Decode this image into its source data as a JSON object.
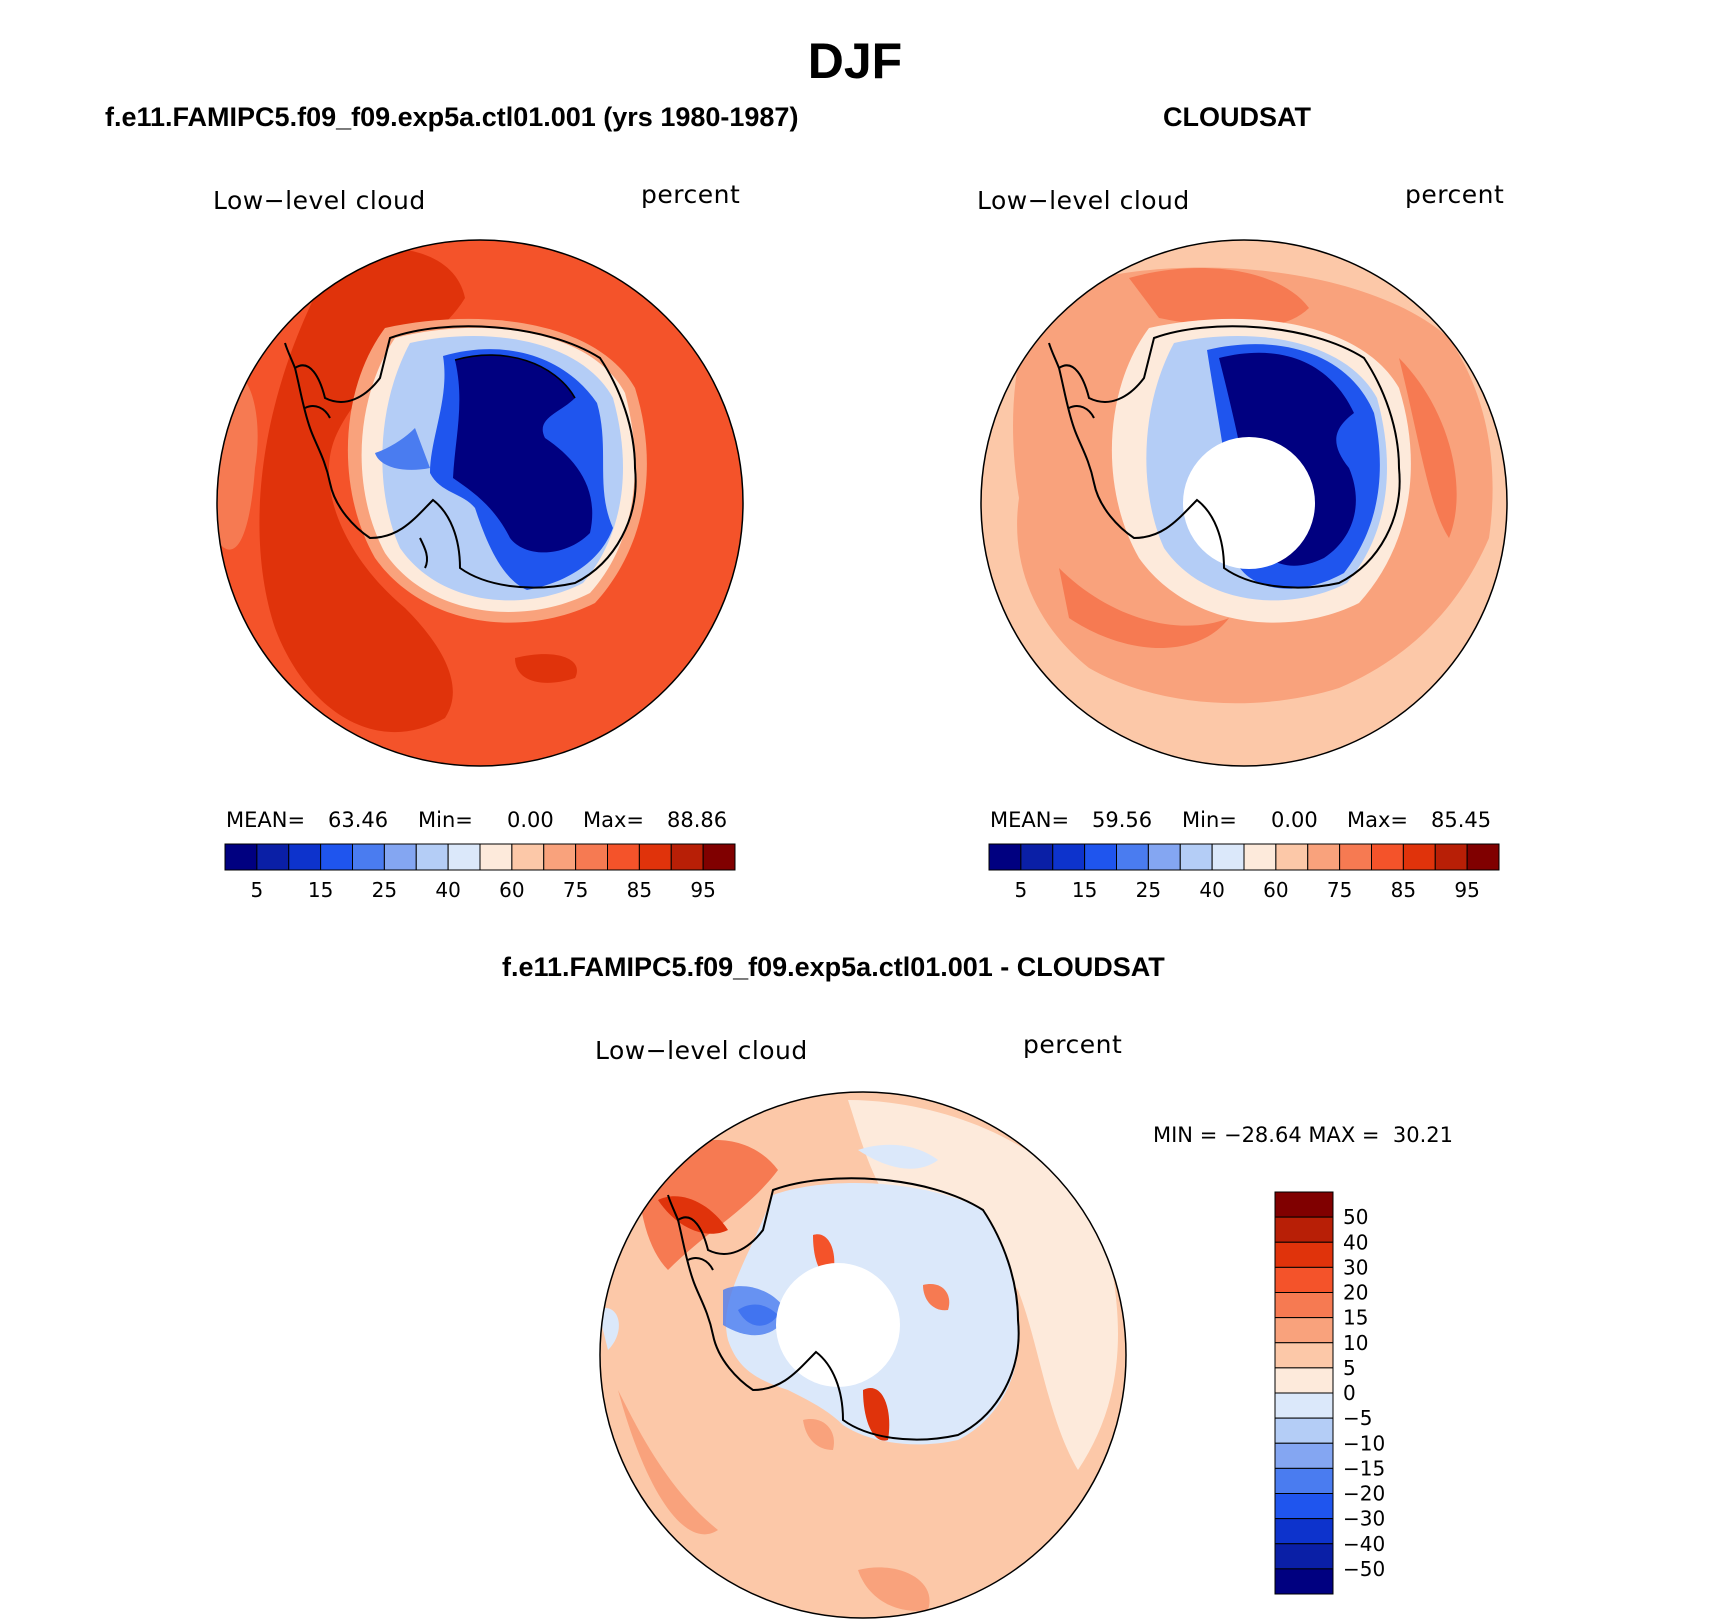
{
  "title": "DJF",
  "panels": {
    "model": {
      "title": "f.e11.FAMIPC5.f09_f09.exp5a.ctl01.001 (yrs 1980-1987)",
      "left_label": "Low−level cloud",
      "right_label": "percent",
      "stats": {
        "mean_label": "MEAN=",
        "mean": "63.46",
        "min_label": "Min=",
        "min": "0.00",
        "max_label": "Max=",
        "max": "88.86"
      }
    },
    "obs": {
      "title": "CLOUDSAT",
      "left_label": "Low−level cloud",
      "right_label": "percent",
      "stats": {
        "mean_label": "MEAN=",
        "mean": "59.56",
        "min_label": "Min=",
        "min": "0.00",
        "max_label": "Max=",
        "max": "85.45"
      }
    },
    "diff": {
      "title": "f.e11.FAMIPC5.f09_f09.exp5a.ctl01.001 - CLOUDSAT",
      "left_label": "Low−level cloud",
      "right_label": "percent",
      "minmax": "MIN = −28.64 MAX =  30.21"
    }
  },
  "colorbar_field": {
    "colors": [
      "#000080",
      "#0a1fa6",
      "#0d33cc",
      "#1f55ee",
      "#4a7cf0",
      "#84a6f2",
      "#b4cdf6",
      "#dbe8fa",
      "#fdeadb",
      "#fcc8a8",
      "#f9a27c",
      "#f67a52",
      "#f4532a",
      "#e0330b",
      "#b81f06",
      "#800000"
    ],
    "tick_labels": [
      "5",
      "15",
      "25",
      "40",
      "60",
      "75",
      "85",
      "95"
    ]
  },
  "colorbar_diff": {
    "colors": [
      "#800000",
      "#b81f06",
      "#e0330b",
      "#f4532a",
      "#f67a52",
      "#f9a27c",
      "#fcc8a8",
      "#fdeadb",
      "#dbe8fa",
      "#b4cdf6",
      "#84a6f2",
      "#4a7cf0",
      "#1f55ee",
      "#0d33cc",
      "#0a1fa6",
      "#000080"
    ],
    "tick_labels": [
      "50",
      "40",
      "30",
      "20",
      "15",
      "10",
      "5",
      "0",
      "−5",
      "−10",
      "−15",
      "−20",
      "−30",
      "−40",
      "−50"
    ]
  }
}
